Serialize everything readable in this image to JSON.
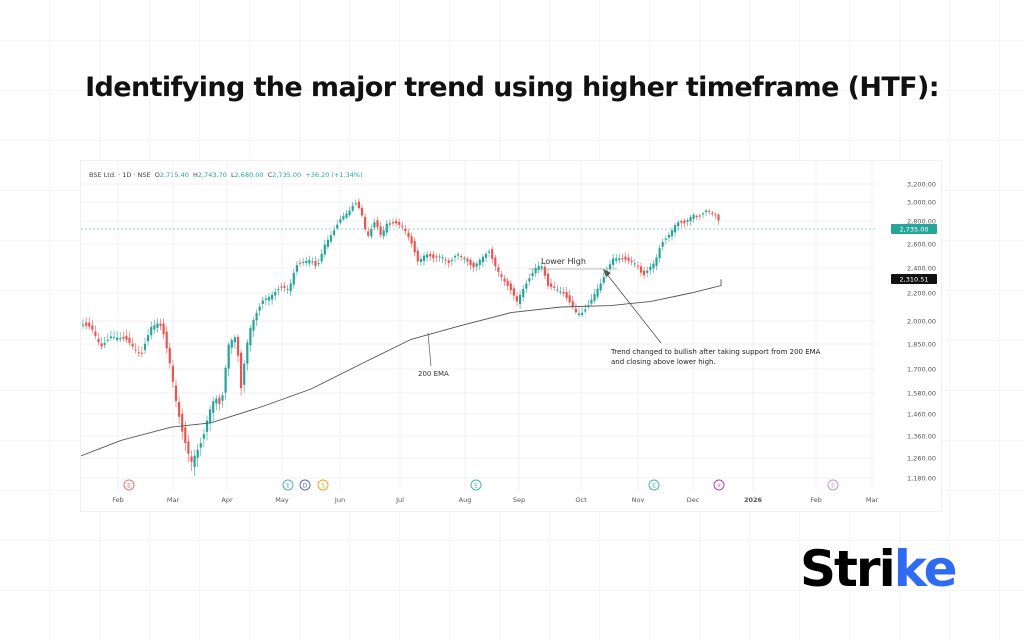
{
  "page": {
    "title": "Identifying the major trend using higher timeframe (HTF):",
    "brand": {
      "prefix": "Stri",
      "accent_part": "ke",
      "accent_color": "#2f6bf0"
    }
  },
  "chart_header": {
    "symbol": "BSE Ltd. · 1D · NSE",
    "open_label": "O",
    "open": "2,715.40",
    "high_label": "H",
    "high": "2,743.70",
    "low_label": "L",
    "low": "2,680.00",
    "close_label": "C",
    "close": "2,735.00",
    "change": "+36.20 (+1.34%)"
  },
  "colors": {
    "up": "#26a69a",
    "down": "#ef5350",
    "ema": "#555555",
    "grid": "#f2f2f2"
  },
  "chart_data": {
    "type": "candlestick",
    "title": "BSE Ltd. 1D NSE",
    "y_ticks": [
      "3,200.00",
      "3,000.00",
      "2,800.00",
      "2,600.00",
      "2,400.00",
      "2,200.00",
      "2,000.00",
      "1,850.00",
      "1,700.00",
      "1,580.00",
      "1,460.00",
      "1,360.00",
      "1,260.00",
      "1,180.00"
    ],
    "x_ticks": [
      "Feb",
      "Mar",
      "Apr",
      "May",
      "Jun",
      "Jul",
      "Aug",
      "Sep",
      "Oct",
      "Nov",
      "Dec",
      "2026",
      "Feb",
      "Mar"
    ],
    "price_labels": {
      "last_price": "2,735.00",
      "ema_value": "2,310.51"
    },
    "series": [
      {
        "name": "200 EMA",
        "type": "line",
        "x": [
          "Feb",
          "Mar",
          "Apr",
          "May",
          "Jun",
          "Jul",
          "Aug",
          "Sep",
          "Oct",
          "Nov",
          "Dec"
        ],
        "values": [
          1270,
          1390,
          1430,
          1560,
          1730,
          1920,
          2040,
          2100,
          2110,
          2180,
          2310
        ]
      },
      {
        "name": "BSE Ltd. close (approx)",
        "type": "candlestick",
        "x": [
          "Feb",
          "Mar early",
          "Mar low",
          "Apr",
          "May",
          "Jun peak",
          "Jul",
          "Aug",
          "Sep",
          "Oct low",
          "Nov",
          "Dec peak",
          "Dec last"
        ],
        "values": [
          1960,
          1900,
          1240,
          1650,
          2200,
          2990,
          2650,
          2450,
          2220,
          2030,
          2480,
          2900,
          2735
        ]
      }
    ],
    "annotations": [
      {
        "text": "Lower High",
        "price": 2430
      },
      {
        "text": "200 EMA"
      },
      {
        "text": "Trend changed to bullish after taking support from 200 EMA and closing above lower high."
      }
    ],
    "event_markers": [
      {
        "label": "E",
        "month": "Feb",
        "color": "#e57373"
      },
      {
        "label": "E",
        "month": "May",
        "color": "#4db6ac"
      },
      {
        "label": "D",
        "month": "May",
        "color": "#5c6bc0"
      },
      {
        "label": "S",
        "month": "May",
        "color": "#f5a623"
      },
      {
        "label": "E",
        "month": "Aug",
        "color": "#4db6ac"
      },
      {
        "label": "E",
        "month": "Nov",
        "color": "#4db6ac"
      },
      {
        "label": "⚡",
        "month": "Dec",
        "color": "#ab47bc"
      },
      {
        "label": "E",
        "month": "Feb",
        "color": "#ce93d8"
      }
    ],
    "grid": true,
    "legend_position": "top-left"
  }
}
